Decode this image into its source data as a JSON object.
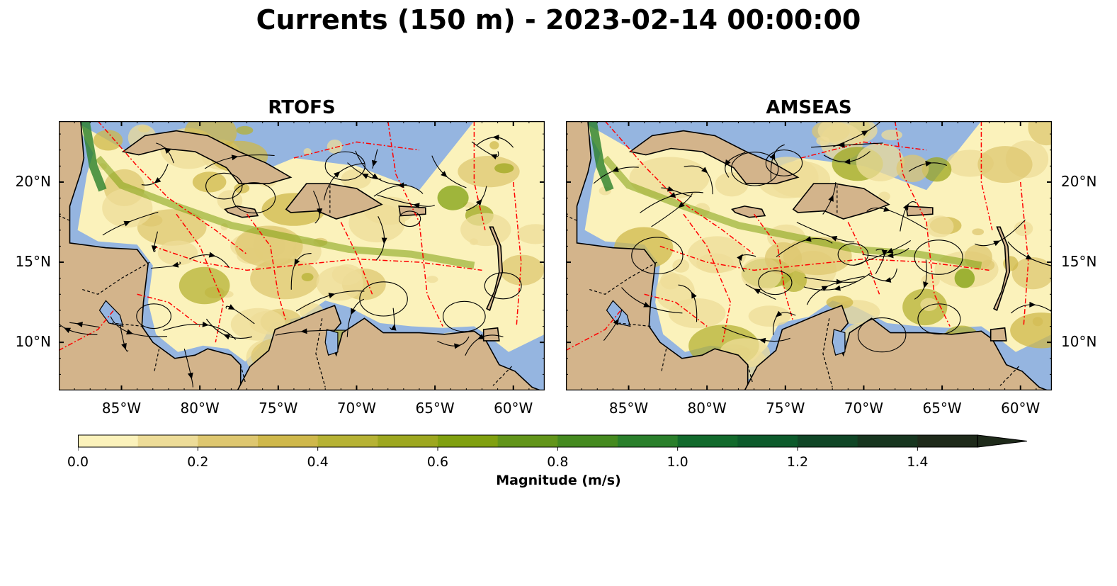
{
  "title": "Currents (150 m) - 2023-02-14 00:00:00",
  "panels": [
    {
      "title": "RTOFS"
    },
    {
      "title": "AMSEAS"
    }
  ],
  "map_extent": {
    "lon_min": -89,
    "lon_max": -58,
    "lat_min": 7,
    "lat_max": 23.8
  },
  "lon_ticks": [
    {
      "value": -85,
      "label": "85°W"
    },
    {
      "value": -80,
      "label": "80°W"
    },
    {
      "value": -75,
      "label": "75°W"
    },
    {
      "value": -70,
      "label": "70°W"
    },
    {
      "value": -65,
      "label": "65°W"
    },
    {
      "value": -60,
      "label": "60°W"
    }
  ],
  "lat_ticks": [
    {
      "value": 20,
      "label": "20°N"
    },
    {
      "value": 15,
      "label": "15°N"
    },
    {
      "value": 10,
      "label": "10°N"
    }
  ],
  "colors": {
    "ocean": "#95b5e0",
    "land": "#d3b48b",
    "coastline": "#000000",
    "eez_lines": "#ff0000",
    "streamlines": "#000000"
  },
  "colorbar": {
    "label": "Magnitude (m/s)",
    "min": 0,
    "max": 1.5,
    "extend": "max",
    "ticks": [
      {
        "value": 0.0,
        "label": "0.0"
      },
      {
        "value": 0.2,
        "label": "0.2"
      },
      {
        "value": 0.4,
        "label": "0.4"
      },
      {
        "value": 0.6,
        "label": "0.6"
      },
      {
        "value": 0.8,
        "label": "0.8"
      },
      {
        "value": 1.0,
        "label": "1.0"
      },
      {
        "value": 1.2,
        "label": "1.2"
      },
      {
        "value": 1.4,
        "label": "1.4"
      }
    ],
    "levels": [
      "#fbf2bb",
      "#eddc98",
      "#dec770",
      "#cfb84b",
      "#b6b234",
      "#9da71f",
      "#80a010",
      "#62951a",
      "#458a1f",
      "#2a7f2b",
      "#126a2c",
      "#0c5a2b",
      "#104626",
      "#17361f",
      "#1e2a1a"
    ]
  }
}
